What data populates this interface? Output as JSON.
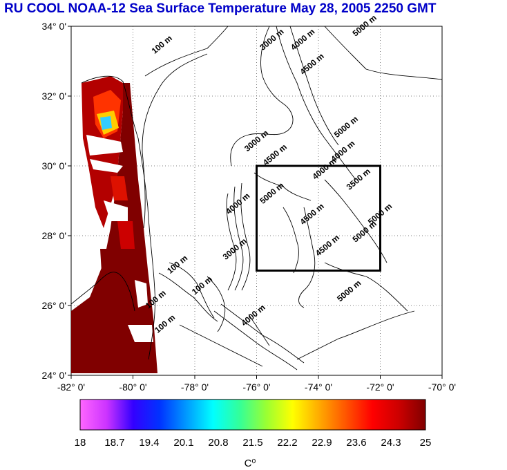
{
  "title": "RU COOL  NOAA-12 Sea Surface Temperature May 28, 2005 2250 GMT",
  "map": {
    "lon_ticks": [
      "-82° 0'",
      "-80° 0'",
      "-78° 0'",
      "-76° 0'",
      "-74° 0'",
      "-72° 0'",
      "-70° 0'"
    ],
    "lat_ticks": [
      "34° 0'",
      "32° 0'",
      "30° 0'",
      "28° 0'",
      "26° 0'",
      "24° 0'"
    ],
    "lon_range": [
      -82,
      -70
    ],
    "lat_range": [
      24,
      34
    ],
    "box": {
      "lon": [
        -76,
        -72
      ],
      "lat": [
        27,
        30
      ]
    },
    "contour_labels": [
      {
        "text": "100 m",
        "lon": -79.3,
        "lat": 33.2
      },
      {
        "text": "3000 m",
        "lon": -75.8,
        "lat": 33.3
      },
      {
        "text": "4000 m",
        "lon": -74.8,
        "lat": 33.3
      },
      {
        "text": "4500 m",
        "lon": -74.5,
        "lat": 32.6
      },
      {
        "text": "5000 m",
        "lon": -72.8,
        "lat": 33.7
      },
      {
        "text": "3000 m",
        "lon": -76.3,
        "lat": 30.4
      },
      {
        "text": "5000 m",
        "lon": -73.4,
        "lat": 30.8
      },
      {
        "text": "4000 m",
        "lon": -73.5,
        "lat": 30.1
      },
      {
        "text": "4500 m",
        "lon": -75.7,
        "lat": 30.0
      },
      {
        "text": "4000 m",
        "lon": -74.1,
        "lat": 29.6
      },
      {
        "text": "3500 m",
        "lon": -73.0,
        "lat": 29.3
      },
      {
        "text": "4500 m",
        "lon": -74.5,
        "lat": 28.3
      },
      {
        "text": "5000 m",
        "lon": -72.3,
        "lat": 28.3
      },
      {
        "text": "5000 m",
        "lon": -72.8,
        "lat": 27.8
      },
      {
        "text": "4500 m",
        "lon": -74.0,
        "lat": 27.4
      },
      {
        "text": "4000 m",
        "lon": -76.9,
        "lat": 28.6
      },
      {
        "text": "5000 m",
        "lon": -75.8,
        "lat": 28.9
      },
      {
        "text": "3000 m",
        "lon": -77.0,
        "lat": 27.3
      },
      {
        "text": "100 m",
        "lon": -78.8,
        "lat": 26.9
      },
      {
        "text": "100 m",
        "lon": -78.0,
        "lat": 26.3
      },
      {
        "text": "100 m",
        "lon": -79.5,
        "lat": 25.9
      },
      {
        "text": "100 m",
        "lon": -79.2,
        "lat": 25.2
      },
      {
        "text": "5000 m",
        "lon": -73.3,
        "lat": 26.1
      },
      {
        "text": "4000 m",
        "lon": -76.4,
        "lat": 25.4
      }
    ]
  },
  "colorbar": {
    "ticks": [
      "18",
      "18.7",
      "19.4",
      "20.1",
      "20.8",
      "21.5",
      "22.2",
      "22.9",
      "23.6",
      "24.3",
      "25"
    ],
    "unit": "C⁰",
    "colors": [
      "#ff66ff",
      "#cc33ff",
      "#3300ff",
      "#0033ff",
      "#0099ff",
      "#00ffff",
      "#33ff99",
      "#99ff33",
      "#ffff00",
      "#ffaa00",
      "#ff5500",
      "#ff0000",
      "#cc0000",
      "#800000"
    ]
  }
}
